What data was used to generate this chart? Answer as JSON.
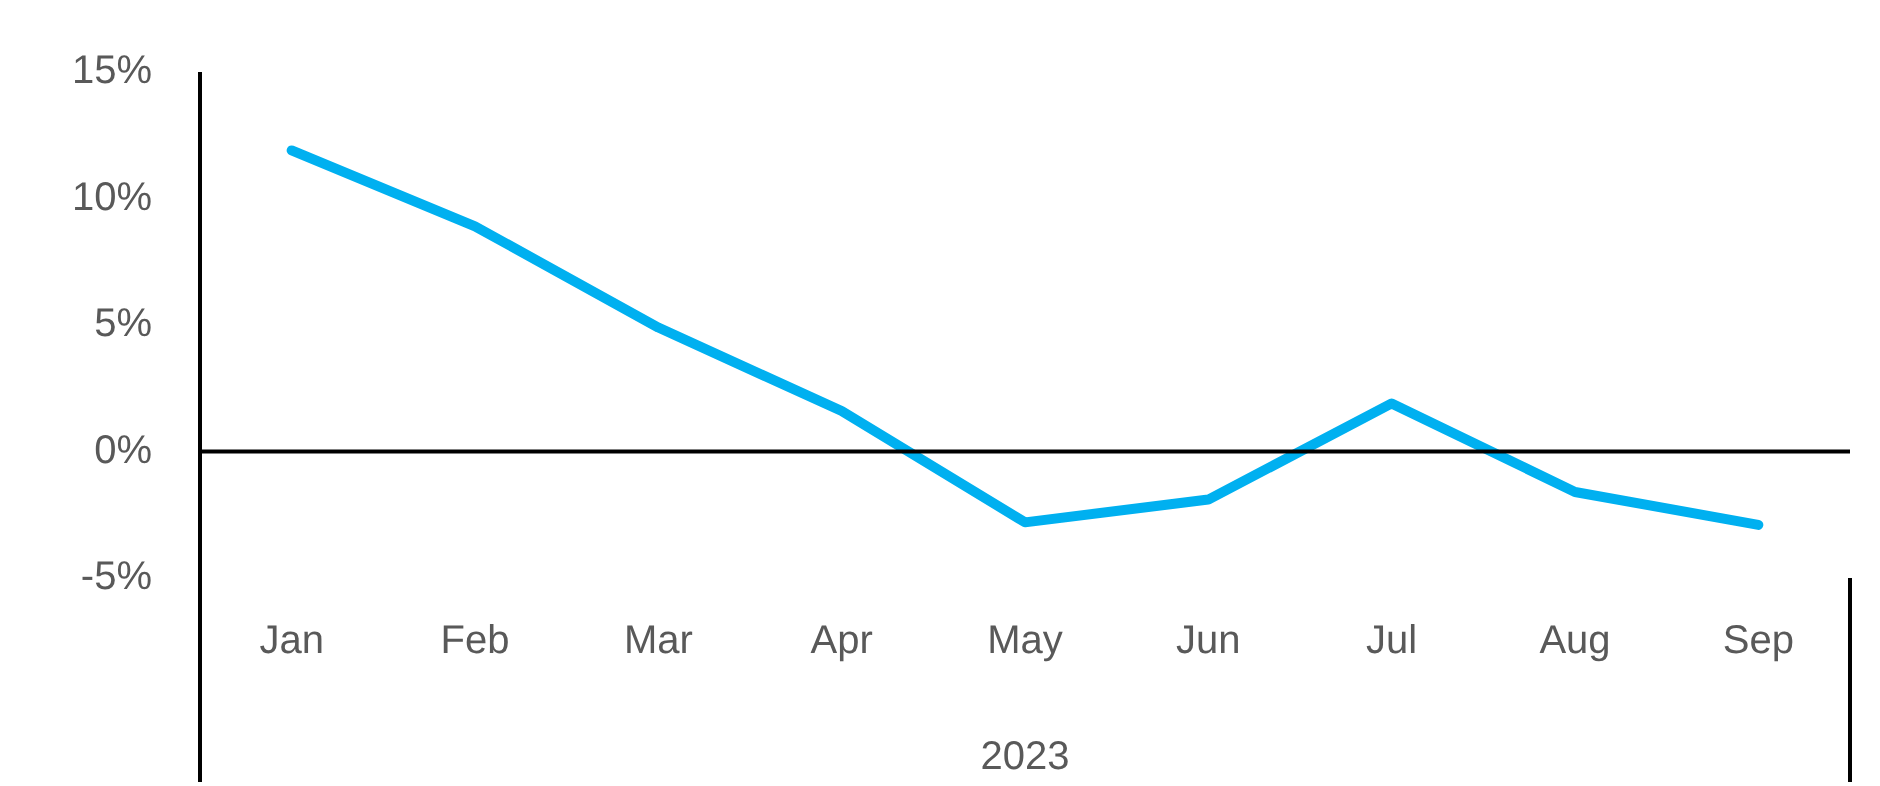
{
  "chart_data": {
    "type": "line",
    "categories": [
      "Jan",
      "Feb",
      "Mar",
      "Apr",
      "May",
      "Jun",
      "Jul",
      "Aug",
      "Sep"
    ],
    "xlabel": "2023",
    "series": [
      {
        "color": "#00b0f0",
        "values": [
          11.9,
          8.9,
          4.9,
          1.6,
          -2.8,
          -1.9,
          1.9,
          -1.6,
          -2.9
        ]
      }
    ],
    "ylim": [
      -5,
      15
    ],
    "yticks": [
      {
        "value": -5,
        "label": "-5%"
      },
      {
        "value": 0,
        "label": "0%"
      },
      {
        "value": 5,
        "label": "5%"
      },
      {
        "value": 10,
        "label": "10%"
      },
      {
        "value": 15,
        "label": "15%"
      }
    ],
    "ref_lines": [
      {
        "axis": "y",
        "value": 0,
        "color": "#000000"
      }
    ],
    "grid": false,
    "legend": false,
    "marker": "none",
    "line_style": "solid"
  }
}
